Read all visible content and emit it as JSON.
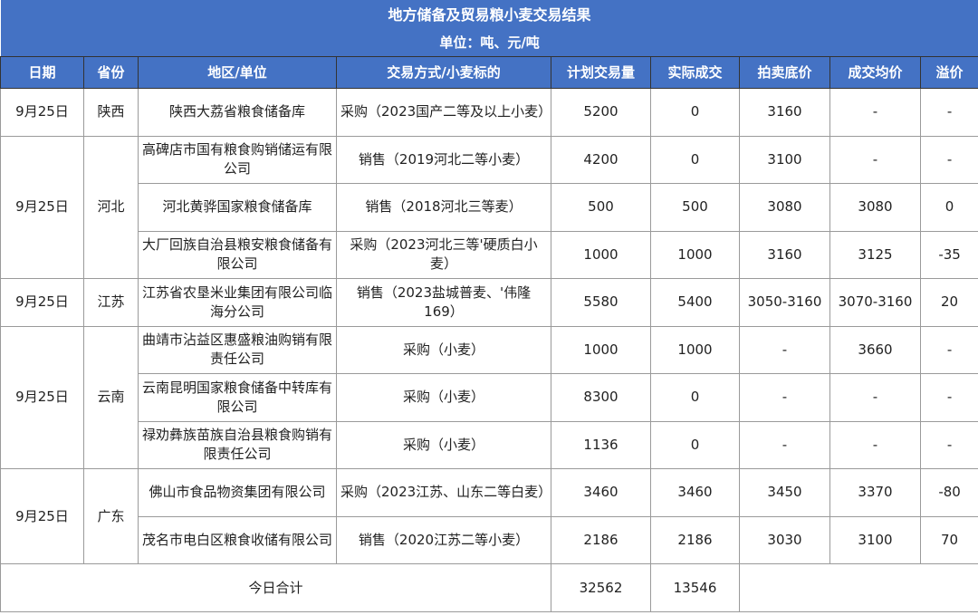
{
  "title": "地方储备及贸易粮小麦交易结果",
  "unit": "单位：吨、元/吨",
  "columns": [
    "日期",
    "省份",
    "地区/单位",
    "交易方式/小麦标的",
    "计划交易量",
    "实际成交",
    "拍卖底价",
    "成交均价",
    "溢价"
  ],
  "groups": [
    {
      "date": "9月25日",
      "province": "陕西",
      "rows": [
        [
          "陕西大荔省粮食储备库",
          "采购（2023国产二等及以上小麦）",
          "5200",
          "0",
          "3160",
          "-",
          "-"
        ]
      ]
    },
    {
      "date": "9月25日",
      "province": "河北",
      "rows": [
        [
          "高碑店市国有粮食购销储运有限公司",
          "销售（2019河北二等小麦）",
          "4200",
          "0",
          "3100",
          "-",
          "-"
        ],
        [
          "河北黄骅国家粮食储备库",
          "销售（2018河北三等麦）",
          "500",
          "500",
          "3080",
          "3080",
          "0"
        ],
        [
          "大厂回族自治县粮安粮食储备有限公司",
          "采购（2023河北三等'硬质白小麦）",
          "1000",
          "1000",
          "3160",
          "3125",
          "-35"
        ]
      ]
    },
    {
      "date": "9月25日",
      "province": "江苏",
      "rows": [
        [
          "江苏省农垦米业集团有限公司临海分公司",
          "销售（2023盐城普麦、'伟隆169）",
          "5580",
          "5400",
          "3050-3160",
          "3070-3160",
          "20"
        ]
      ]
    },
    {
      "date": "9月25日",
      "province": "云南",
      "rows": [
        [
          "曲靖市沾益区惠盛粮油购销有限责任公司",
          "采购（小麦）",
          "1000",
          "1000",
          "-",
          "3660",
          "-"
        ],
        [
          "云南昆明国家粮食储备中转库有限公司",
          "采购（小麦）",
          "8300",
          "0",
          "-",
          "-",
          "-"
        ],
        [
          "禄劝彝族苗族自治县粮食购销有限责任公司",
          "采购（小麦）",
          "1136",
          "0",
          "-",
          "-",
          "-"
        ]
      ]
    },
    {
      "date": "9月25日",
      "province": "广东",
      "rows": [
        [
          "佛山市食品物资集团有限公司",
          "采购（2023江苏、山东二等白麦）",
          "3460",
          "3460",
          "3450",
          "3370",
          "-80"
        ],
        [
          "茂名市电白区粮食收储有限公司",
          "销售（2020江苏二等小麦）",
          "2186",
          "2186",
          "3030",
          "3100",
          "70"
        ]
      ]
    }
  ],
  "total": {
    "label": "今日合计",
    "planned": "32562",
    "actual": "13546"
  },
  "colors": {
    "header_bg": "#4472c4",
    "header_text": "#ffffff"
  }
}
